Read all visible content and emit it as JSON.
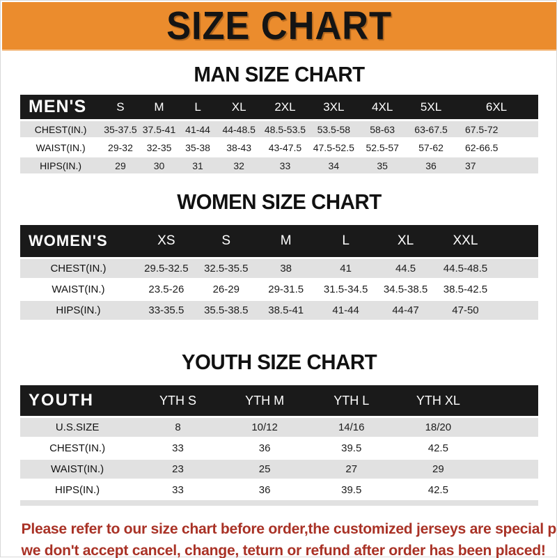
{
  "banner": {
    "title": "SIZE CHART",
    "bg_color": "#EB8C2D",
    "text_color": "#141414"
  },
  "sections": [
    {
      "heading": "MAN SIZE CHART",
      "table": {
        "corner": "MEN'S",
        "columns": [
          "S",
          "M",
          "L",
          "XL",
          "2XL",
          "3XL",
          "4XL",
          "5XL",
          "6XL"
        ],
        "rows": [
          {
            "label": "CHEST(IN.)",
            "values": [
              "35-37.5",
              "37.5-41",
              "41-44",
              "44-48.5",
              "48.5-53.5",
              "53.5-58",
              "58-63",
              "63-67.5",
              "67.5-72"
            ]
          },
          {
            "label": "WAIST(IN.)",
            "values": [
              "29-32",
              "32-35",
              "35-38",
              "38-43",
              "43-47.5",
              "47.5-52.5",
              "52.5-57",
              "57-62",
              "62-66.5"
            ]
          },
          {
            "label": "HIPS(IN.)",
            "values": [
              "29",
              "30",
              "31",
              "32",
              "33",
              "34",
              "35",
              "36",
              "37"
            ]
          }
        ]
      }
    },
    {
      "heading": "WOMEN SIZE CHART",
      "table": {
        "corner": "WOMEN'S",
        "columns": [
          "XS",
          "S",
          "M",
          "L",
          "XL",
          "XXL"
        ],
        "rows": [
          {
            "label": "CHEST(IN.)",
            "values": [
              "29.5-32.5",
              "32.5-35.5",
              "38",
              "41",
              "44.5",
              "44.5-48.5"
            ]
          },
          {
            "label": "WAIST(IN.)",
            "values": [
              "23.5-26",
              "26-29",
              "29-31.5",
              "31.5-34.5",
              "34.5-38.5",
              "38.5-42.5"
            ]
          },
          {
            "label": "HIPS(IN.)",
            "values": [
              "33-35.5",
              "35.5-38.5",
              "38.5-41",
              "41-44",
              "44-47",
              "47-50"
            ]
          }
        ]
      }
    },
    {
      "heading": "YOUTH SIZE CHART",
      "table": {
        "corner": "YOUTH",
        "columns": [
          "YTH S",
          "YTH M",
          "YTH L",
          "YTH XL"
        ],
        "rows": [
          {
            "label": "U.S.SIZE",
            "values": [
              "8",
              "10/12",
              "14/16",
              "18/20"
            ]
          },
          {
            "label": "CHEST(IN.)",
            "values": [
              "33",
              "36",
              "39.5",
              "42.5"
            ]
          },
          {
            "label": "WAIST(IN.)",
            "values": [
              "23",
              "25",
              "27",
              "29"
            ]
          },
          {
            "label": "HIPS(IN.)",
            "values": [
              "33",
              "36",
              "39.5",
              "42.5"
            ]
          }
        ]
      }
    }
  ],
  "footer": {
    "line1": "Please refer to our size chart before order,the customized jerseys are special products,",
    "line2": "we don't accept cancel, change, teturn or refund after order has been placed!",
    "text_color": "#A93226"
  },
  "colors": {
    "header_bar": "#1A1A1A",
    "header_text": "#FFFFFF",
    "row_alt": "#E1E1E1",
    "row_base": "#FFFFFF"
  }
}
